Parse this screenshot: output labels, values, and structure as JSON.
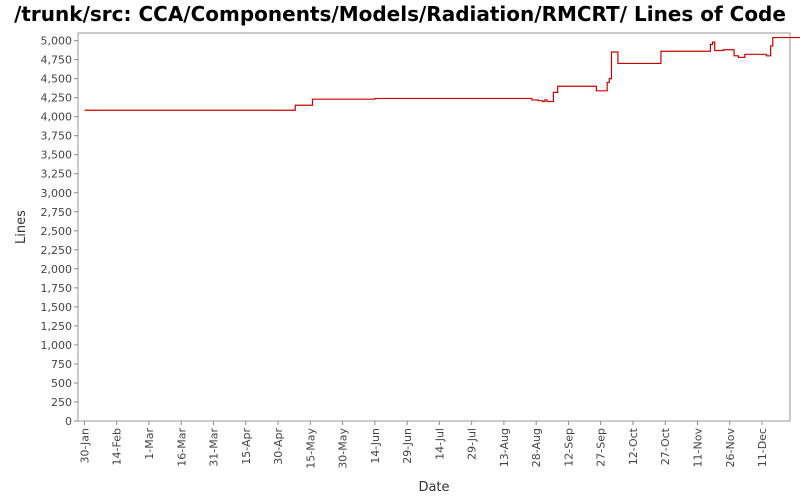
{
  "chart_data": {
    "type": "line",
    "title": "/trunk/src: CCA/Components/Models/Radiation/RMCRT/ Lines of Code",
    "xlabel": "Date",
    "ylabel": "Lines",
    "ylim": [
      0,
      5100
    ],
    "y_ticks": [
      0,
      250,
      500,
      750,
      1000,
      1250,
      1500,
      1750,
      2000,
      2250,
      2500,
      2750,
      3000,
      3250,
      3500,
      3750,
      4000,
      4250,
      4500,
      4750,
      5000
    ],
    "y_tick_labels": [
      "0",
      "250",
      "500",
      "750",
      "1,000",
      "1,250",
      "1,500",
      "1,750",
      "2,000",
      "2,250",
      "2,500",
      "2,750",
      "3,000",
      "3,250",
      "3,500",
      "3,750",
      "4,000",
      "4,250",
      "4,500",
      "4,750",
      "5,000"
    ],
    "xlim": [
      -3,
      328
    ],
    "x_ticks": [
      0,
      15,
      30,
      45,
      60,
      75,
      90,
      105,
      120,
      135,
      150,
      165,
      180,
      195,
      210,
      225,
      240,
      255,
      270,
      285,
      300,
      315
    ],
    "x_tick_labels": [
      "30-Jan",
      "14-Feb",
      "1-Mar",
      "16-Mar",
      "31-Mar",
      "15-Apr",
      "30-Apr",
      "15-May",
      "30-May",
      "14-Jun",
      "29-Jun",
      "14-Jul",
      "29-Jul",
      "13-Aug",
      "28-Aug",
      "12-Sep",
      "27-Sep",
      "12-Oct",
      "27-Oct",
      "11-Nov",
      "26-Nov",
      "11-Dec"
    ],
    "x_unit": "days since 30-Jan",
    "grid": false,
    "series": [
      {
        "name": "Lines of Code",
        "color": "#cc0000",
        "step": true,
        "points": [
          [
            0,
            4085
          ],
          [
            98,
            4085
          ],
          [
            98,
            4150
          ],
          [
            106,
            4150
          ],
          [
            106,
            4230
          ],
          [
            135,
            4230
          ],
          [
            135,
            4240
          ],
          [
            208,
            4240
          ],
          [
            208,
            4220
          ],
          [
            211,
            4220
          ],
          [
            211,
            4210
          ],
          [
            213,
            4210
          ],
          [
            213,
            4200
          ],
          [
            214,
            4200
          ],
          [
            214,
            4220
          ],
          [
            215,
            4220
          ],
          [
            215,
            4200
          ],
          [
            218,
            4200
          ],
          [
            218,
            4320
          ],
          [
            220,
            4320
          ],
          [
            220,
            4400
          ],
          [
            238,
            4400
          ],
          [
            238,
            4340
          ],
          [
            243,
            4340
          ],
          [
            243,
            4450
          ],
          [
            244,
            4450
          ],
          [
            244,
            4500
          ],
          [
            245,
            4500
          ],
          [
            245,
            4850
          ],
          [
            248,
            4850
          ],
          [
            248,
            4700
          ],
          [
            268,
            4700
          ],
          [
            268,
            4860
          ],
          [
            291,
            4860
          ],
          [
            291,
            4950
          ],
          [
            292,
            4950
          ],
          [
            292,
            4980
          ],
          [
            293,
            4980
          ],
          [
            293,
            4870
          ],
          [
            297,
            4870
          ],
          [
            297,
            4880
          ],
          [
            302,
            4880
          ],
          [
            302,
            4800
          ],
          [
            304,
            4800
          ],
          [
            304,
            4780
          ],
          [
            307,
            4780
          ],
          [
            307,
            4820
          ],
          [
            317,
            4820
          ],
          [
            317,
            4800
          ],
          [
            319,
            4800
          ],
          [
            319,
            4930
          ],
          [
            320,
            4930
          ],
          [
            320,
            5040
          ],
          [
            333,
            5040
          ],
          [
            333,
            5055
          ]
        ]
      }
    ]
  }
}
